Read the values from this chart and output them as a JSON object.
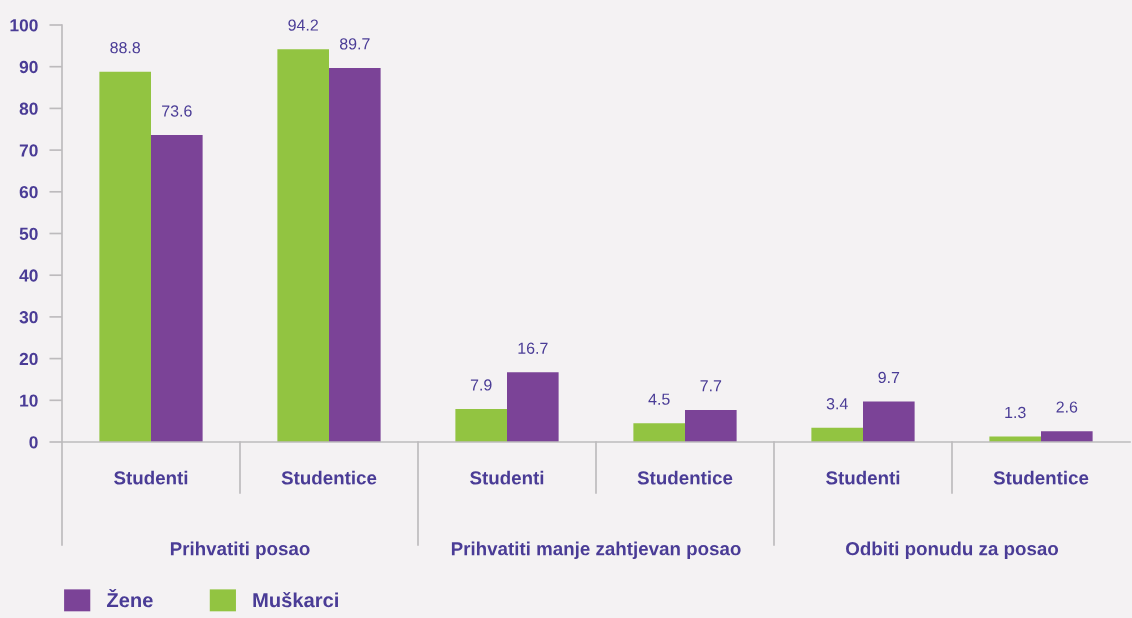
{
  "chart_data": {
    "type": "bar",
    "categories": [
      "Studenti",
      "Studentice",
      "Studenti",
      "Studentice",
      "Studenti",
      "Studentice"
    ],
    "series": [
      {
        "name": "Muškarci",
        "color": "#92c441",
        "values": [
          88.8,
          94.2,
          7.9,
          4.5,
          3.4,
          1.3
        ]
      },
      {
        "name": "Žene",
        "color": "#7b4397",
        "values": [
          73.6,
          89.7,
          16.7,
          7.7,
          9.7,
          2.6
        ]
      }
    ],
    "annotations": [
      "Prihvatiti posao",
      "Prihvatiti manje zahtjevan posao",
      "Odbiti ponudu za posao"
    ],
    "ylim": [
      0,
      100
    ],
    "yticks": [
      0,
      10,
      20,
      30,
      40,
      50,
      60,
      70,
      80,
      90,
      100
    ],
    "grid": false,
    "legend": "bottom left",
    "data_labels": true
  }
}
